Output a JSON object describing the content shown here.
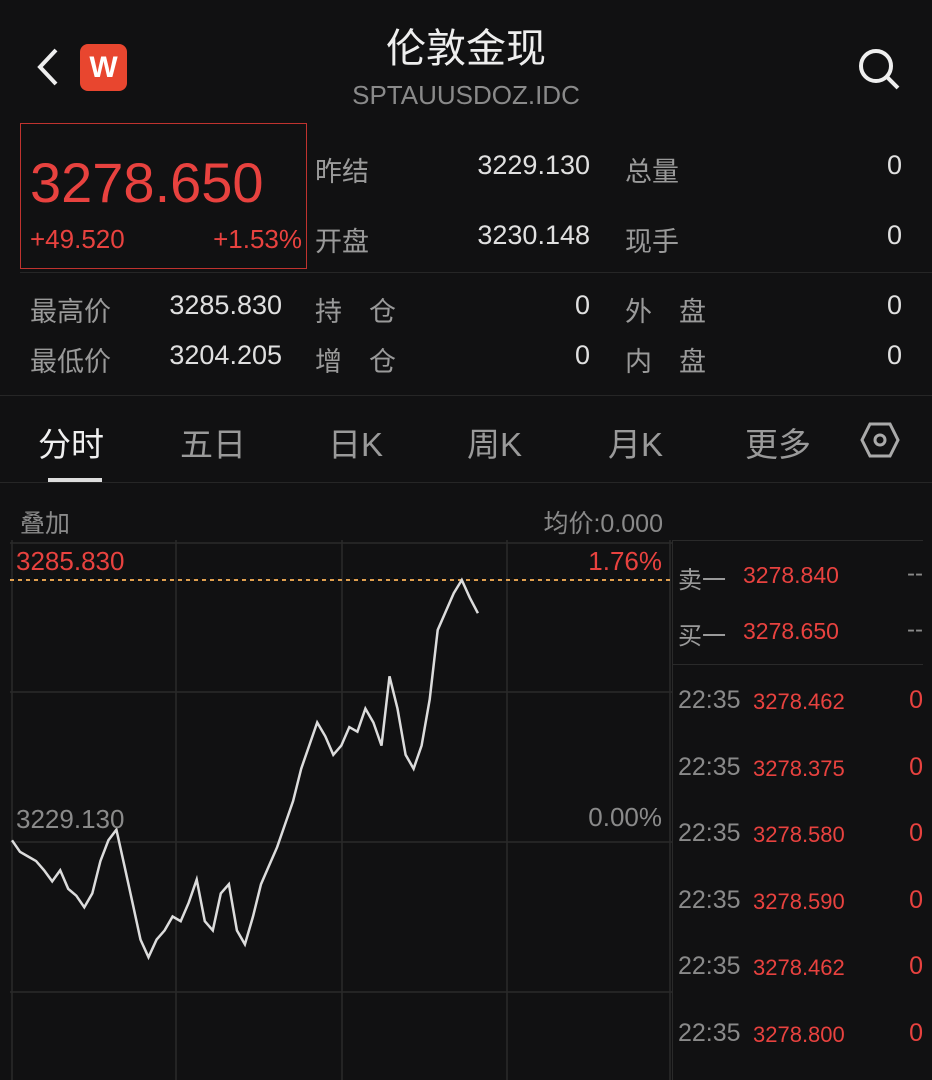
{
  "header": {
    "title": "伦敦金现",
    "subtitle": "SPTAUUSDOZ.IDC",
    "logo_text": "W",
    "back_icon": "chevron-left-icon",
    "search_icon": "search-icon"
  },
  "quote": {
    "price": "3278.650",
    "change": "+49.520",
    "change_pct": "+1.53%",
    "prev_close_label": "昨结",
    "prev_close": "3229.130",
    "volume_label": "总量",
    "volume": "0",
    "open_label": "开盘",
    "open": "3230.148",
    "last_vol_label": "现手",
    "last_vol": "0",
    "high_label": "最高价",
    "high": "3285.830",
    "oi_label": "持　仓",
    "oi": "0",
    "outer_label": "外　盘",
    "outer": "0",
    "low_label": "最低价",
    "low": "3204.205",
    "oi_chg_label": "增　仓",
    "oi_chg": "0",
    "inner_label": "内　盘",
    "inner": "0"
  },
  "tabs": [
    {
      "label": "分时",
      "active": true
    },
    {
      "label": "五日"
    },
    {
      "label": "日K"
    },
    {
      "label": "周K"
    },
    {
      "label": "月K"
    },
    {
      "label": "更多"
    }
  ],
  "settings_icon": "hexagon-settings-icon",
  "chart_bar": {
    "overlay": "叠加",
    "avg_price": "均价:0.000"
  },
  "chart_data": {
    "type": "line",
    "ref_price": 3229.13,
    "top_price": 3285.83,
    "top_label": "3285.830",
    "top_pct": "1.76%",
    "ref_label": "3229.130",
    "ref_pct": "0.00%",
    "total_slots": 100,
    "values": [
      3229.5,
      3227,
      3226,
      3225,
      3223,
      3220.6,
      3223,
      3219,
      3217.5,
      3215,
      3218,
      3225,
      3229.5,
      3231.8,
      3224,
      3216,
      3208,
      3204.2,
      3208,
      3210,
      3213,
      3212,
      3216,
      3221,
      3212,
      3210,
      3218,
      3220,
      3210,
      3207,
      3213,
      3220,
      3224,
      3228,
      3233,
      3238,
      3245,
      3250,
      3255,
      3252,
      3248,
      3250,
      3254,
      3253,
      3258,
      3255,
      3250,
      3265,
      3258,
      3248,
      3245,
      3250,
      3260,
      3275,
      3279,
      3283,
      3285.83,
      3282,
      3278.65
    ],
    "colors": {
      "line": "#dcdcdc",
      "high_line": "#e0a050"
    }
  },
  "order_book": {
    "ask": {
      "label": "卖一",
      "price": "3278.840",
      "qty": "--"
    },
    "bid": {
      "label": "买一",
      "price": "3278.650",
      "qty": "--"
    },
    "trades": [
      {
        "time": "22:35",
        "price": "3278.462",
        "qty": "0"
      },
      {
        "time": "22:35",
        "price": "3278.375",
        "qty": "0"
      },
      {
        "time": "22:35",
        "price": "3278.580",
        "qty": "0"
      },
      {
        "time": "22:35",
        "price": "3278.590",
        "qty": "0"
      },
      {
        "time": "22:35",
        "price": "3278.462",
        "qty": "0"
      },
      {
        "time": "22:35",
        "price": "3278.800",
        "qty": "0"
      }
    ]
  },
  "colors": {
    "up": "#e8423f",
    "bg": "#111112"
  }
}
